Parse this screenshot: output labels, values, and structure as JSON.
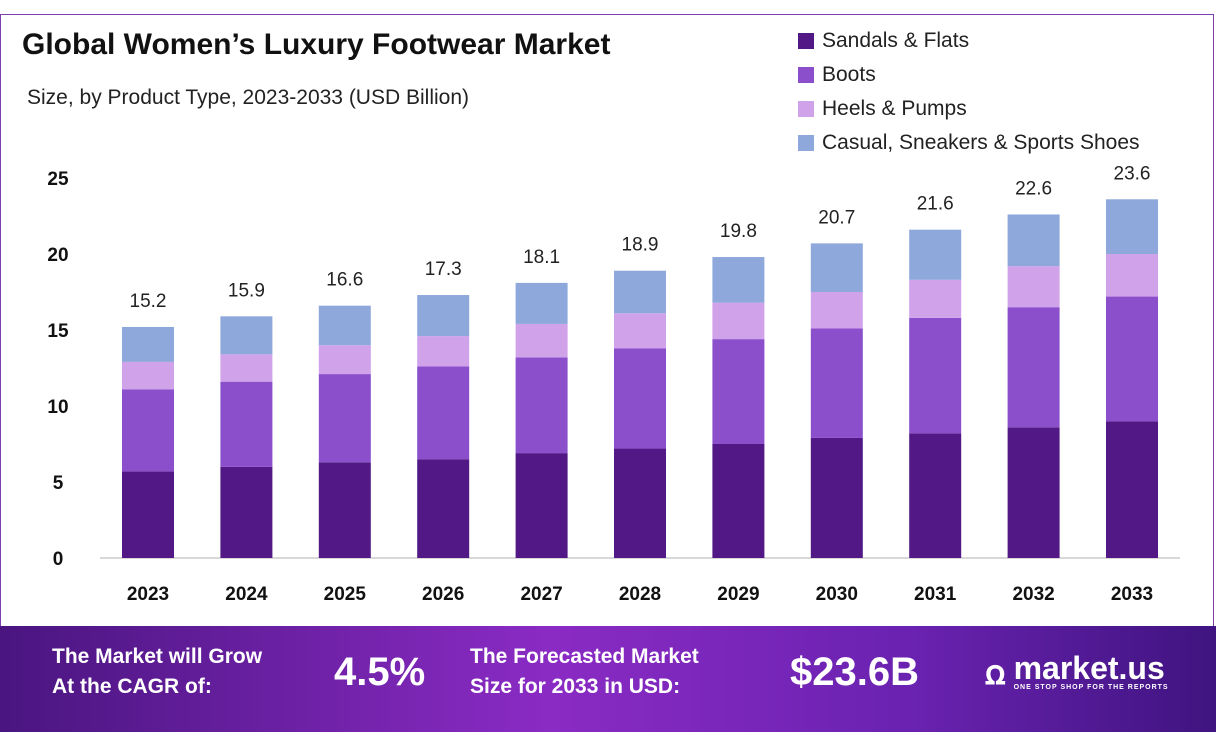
{
  "chart_data": {
    "type": "bar",
    "stacked": true,
    "title": "Global Women’s Luxury Footwear Market",
    "subtitle": "Size, by Product Type, 2023-2033 (USD Billion)",
    "categories": [
      "2023",
      "2024",
      "2025",
      "2026",
      "2027",
      "2028",
      "2029",
      "2030",
      "2031",
      "2032",
      "2033"
    ],
    "series": [
      {
        "name": "Sandals & Flats",
        "color": "#521886",
        "values": [
          5.7,
          6.0,
          6.3,
          6.5,
          6.9,
          7.2,
          7.5,
          7.9,
          8.2,
          8.6,
          9.0
        ]
      },
      {
        "name": "Boots",
        "color": "#8b4fcc",
        "values": [
          5.4,
          5.6,
          5.8,
          6.1,
          6.3,
          6.6,
          6.9,
          7.2,
          7.6,
          7.9,
          8.2
        ]
      },
      {
        "name": "Heels & Pumps",
        "color": "#d0a2ea",
        "values": [
          1.8,
          1.8,
          1.9,
          2.0,
          2.2,
          2.3,
          2.4,
          2.4,
          2.5,
          2.7,
          2.8
        ]
      },
      {
        "name": "Casual, Sneakers & Sports Shoes",
        "color": "#8ea8dc",
        "values": [
          2.3,
          2.5,
          2.6,
          2.7,
          2.7,
          2.8,
          3.0,
          3.2,
          3.3,
          3.4,
          3.6
        ]
      }
    ],
    "totals": [
      "15.2",
      "15.9",
      "16.6",
      "17.3",
      "18.1",
      "18.9",
      "19.8",
      "20.7",
      "21.6",
      "22.6",
      "23.6"
    ],
    "yticks": [
      "0",
      "5",
      "10",
      "15",
      "20",
      "25"
    ],
    "ylim": [
      0,
      25
    ],
    "grid": false,
    "legend_position": "top-right"
  },
  "banner": {
    "cagr_label_1": "The Market will Grow",
    "cagr_label_2": "At the CAGR of:",
    "cagr_value": "4.5%",
    "forecast_label_1": "The Forecasted Market",
    "forecast_label_2": "Size for 2033 in USD:",
    "forecast_value": "$23.6B",
    "logo_name": "market.us",
    "logo_tagline": "ONE STOP SHOP FOR THE REPORTS"
  }
}
